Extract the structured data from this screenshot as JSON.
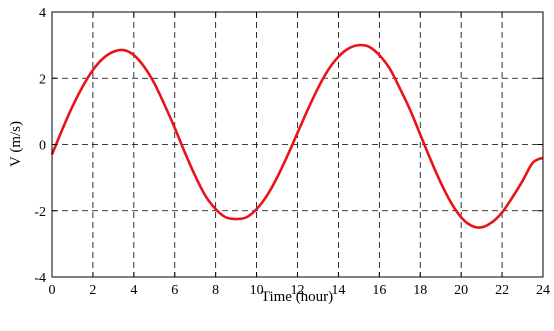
{
  "chart_data": {
    "type": "line",
    "title": "",
    "xlabel": "Time (hour)",
    "ylabel": "V (m/s)",
    "xlim": [
      0,
      24
    ],
    "ylim": [
      -4,
      4
    ],
    "xticks": [
      0,
      2,
      4,
      6,
      8,
      10,
      12,
      14,
      16,
      18,
      20,
      22,
      24
    ],
    "yticks": [
      -4,
      -2,
      0,
      2,
      4
    ],
    "grid": true,
    "grid_style": "dashed",
    "series": [
      {
        "color": "#e8141a",
        "x": [
          0,
          0.5,
          1,
          1.5,
          2,
          2.5,
          3,
          3.5,
          4,
          4.5,
          5,
          5.5,
          6,
          6.5,
          7,
          7.5,
          8,
          8.5,
          9,
          9.5,
          10,
          10.5,
          11,
          11.5,
          12,
          12.5,
          13,
          13.5,
          14,
          14.5,
          15,
          15.5,
          16,
          16.5,
          17,
          17.5,
          18,
          18.5,
          19,
          19.5,
          20,
          20.5,
          21,
          21.5,
          22,
          22.5,
          23,
          23.5,
          24
        ],
        "y": [
          -0.3,
          0.45,
          1.15,
          1.75,
          2.25,
          2.6,
          2.8,
          2.85,
          2.7,
          2.35,
          1.85,
          1.2,
          0.5,
          -0.25,
          -0.95,
          -1.55,
          -1.95,
          -2.2,
          -2.25,
          -2.2,
          -1.95,
          -1.55,
          -1.0,
          -0.35,
          0.35,
          1.05,
          1.7,
          2.25,
          2.65,
          2.9,
          3.0,
          2.95,
          2.7,
          2.3,
          1.7,
          1.05,
          0.3,
          -0.45,
          -1.15,
          -1.75,
          -2.2,
          -2.45,
          -2.5,
          -2.35,
          -2.05,
          -1.6,
          -1.1,
          -0.55,
          -0.4
        ]
      }
    ]
  }
}
